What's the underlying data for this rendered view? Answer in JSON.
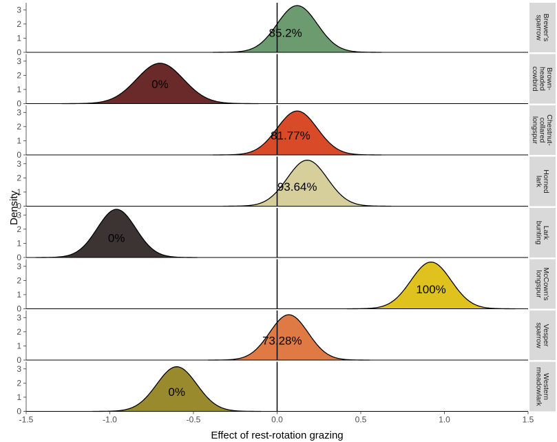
{
  "chart_data": {
    "type": "area",
    "xlabel": "Effect of rest-rotation grazing",
    "ylabel": "Density",
    "xlim": [
      -1.5,
      1.5
    ],
    "ylim": [
      0,
      3.5
    ],
    "x_ticks": [
      -1.5,
      -1.0,
      -0.5,
      0.0,
      0.5,
      1.0,
      1.5
    ],
    "x_tick_labels": [
      "-1.5",
      "-1.0",
      "-0.5",
      "0.0",
      "0.5",
      "1.0",
      "1.5"
    ],
    "y_ticks": [
      0,
      1,
      2,
      3
    ],
    "y_tick_labels": [
      "0",
      "1",
      "2",
      "3"
    ],
    "reference_line_x": 0,
    "grid": false,
    "series": [
      {
        "name": "Brewer's sparrow",
        "label_lines": [
          "Brewer's",
          "sparrow"
        ],
        "mean": 0.12,
        "sd": 0.12,
        "peak": 3.3,
        "percent_label": "85.2%",
        "label_x": 0.05,
        "color": "#6b9b6f"
      },
      {
        "name": "Brown-headed cowbird",
        "label_lines": [
          "Brown-",
          "headed",
          "cowbird"
        ],
        "mean": -0.7,
        "sd": 0.14,
        "peak": 2.85,
        "percent_label": "0%",
        "label_x": -0.7,
        "color": "#6a2a2a"
      },
      {
        "name": "Chestnut-collared longspur",
        "label_lines": [
          "Chestnut-",
          "collared",
          "longspur"
        ],
        "mean": 0.12,
        "sd": 0.12,
        "peak": 3.1,
        "percent_label": "81.77%",
        "label_x": 0.08,
        "color": "#d84a28"
      },
      {
        "name": "Horned lark",
        "label_lines": [
          "Horned",
          "lark"
        ],
        "mean": 0.18,
        "sd": 0.12,
        "peak": 3.25,
        "percent_label": "93.64%",
        "label_x": 0.12,
        "color": "#d6cf9c"
      },
      {
        "name": "Lark bunting",
        "label_lines": [
          "Lark",
          "bunting"
        ],
        "mean": -0.96,
        "sd": 0.115,
        "peak": 3.4,
        "percent_label": "0%",
        "label_x": -0.96,
        "color": "#3b3432"
      },
      {
        "name": "McCown's longspur",
        "label_lines": [
          "McCown's",
          "longspur"
        ],
        "mean": 0.92,
        "sd": 0.12,
        "peak": 3.3,
        "percent_label": "100%",
        "label_x": 0.92,
        "color": "#e0c21e"
      },
      {
        "name": "Vesper sparrow",
        "label_lines": [
          "Vesper",
          "sparrow"
        ],
        "mean": 0.07,
        "sd": 0.115,
        "peak": 3.2,
        "percent_label": "73.28%",
        "label_x": 0.03,
        "color": "#e07a44"
      },
      {
        "name": "Western meadowlark",
        "label_lines": [
          "Western",
          "meadowlark"
        ],
        "mean": -0.6,
        "sd": 0.12,
        "peak": 3.15,
        "percent_label": "0%",
        "label_x": -0.6,
        "color": "#9a8a2e"
      }
    ]
  }
}
